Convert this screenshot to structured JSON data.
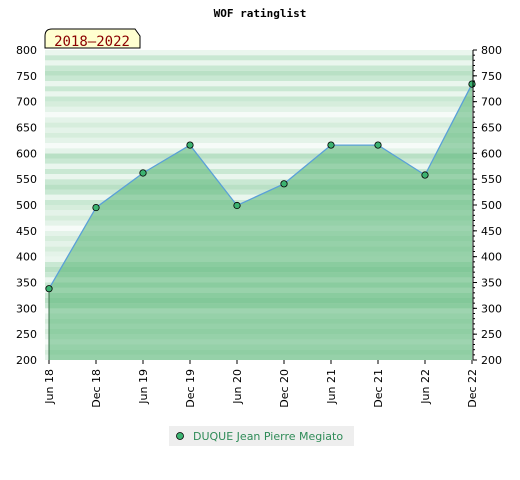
{
  "chart_data": {
    "type": "area",
    "title": "WOF ratinglist",
    "period_badge": "2018–2022",
    "categories": [
      "Jun 18",
      "Dec 18",
      "Jun 19",
      "Dec 19",
      "Jun 20",
      "Dec 20",
      "Jun 21",
      "Dec 21",
      "Jun 22",
      "Dec 22"
    ],
    "series": [
      {
        "name": "DUQUE Jean Pierre Megiato",
        "values": [
          338,
          495,
          562,
          616,
          499,
          541,
          616,
          616,
          558,
          734
        ]
      }
    ],
    "ylim": [
      200,
      800
    ],
    "y_ticks": [
      200,
      250,
      300,
      350,
      400,
      450,
      500,
      550,
      600,
      650,
      700,
      750,
      800
    ],
    "grid": false,
    "legend_position": "bottom-center",
    "colors": {
      "line": "#5aa0d8",
      "area": "#55b475",
      "marker": "#3cb371",
      "badge_bg": "#ffffd0",
      "legend_text": "#2e8b57",
      "legend_bg": "#eeeeee"
    }
  }
}
